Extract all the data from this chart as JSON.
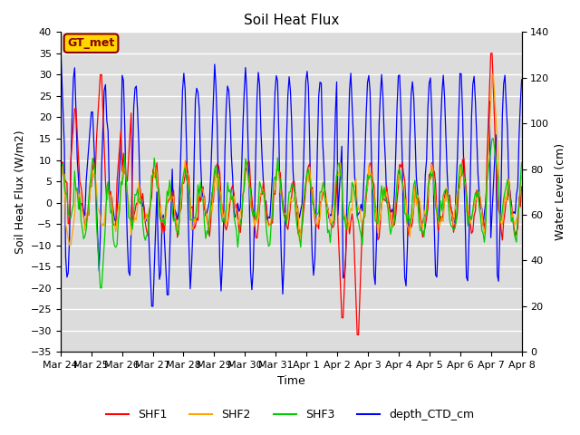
{
  "title": "Soil Heat Flux",
  "xlabel": "Time",
  "ylabel_left": "Soil Heat Flux (W/m2)",
  "ylabel_right": "Water Level (cm)",
  "ylim_left": [
    -35,
    40
  ],
  "ylim_right": [
    0,
    140
  ],
  "annotation": "GT_met",
  "annotation_color": "#8B0000",
  "annotation_bg": "#FFD700",
  "bg_color": "#DCDCDC",
  "grid_color": "white",
  "colors": {
    "SHF1": "#FF0000",
    "SHF2": "#FFA500",
    "SHF3": "#00CC00",
    "depth_CTD_cm": "#0000FF"
  },
  "x_tick_labels": [
    "Mar 24",
    "Mar 25",
    "Mar 26",
    "Mar 27",
    "Mar 28",
    "Mar 29",
    "Mar 30",
    "Mar 31",
    "Apr 1",
    "Apr 2",
    "Apr 3",
    "Apr 4",
    "Apr 5",
    "Apr 6",
    "Apr 7",
    "Apr 8"
  ],
  "left_yticks": [
    40,
    35,
    30,
    25,
    20,
    15,
    10,
    5,
    0,
    -5,
    -10,
    -15,
    -20,
    -25,
    -30,
    -35
  ],
  "right_yticks": [
    140,
    120,
    100,
    80,
    60,
    40,
    20,
    0
  ]
}
